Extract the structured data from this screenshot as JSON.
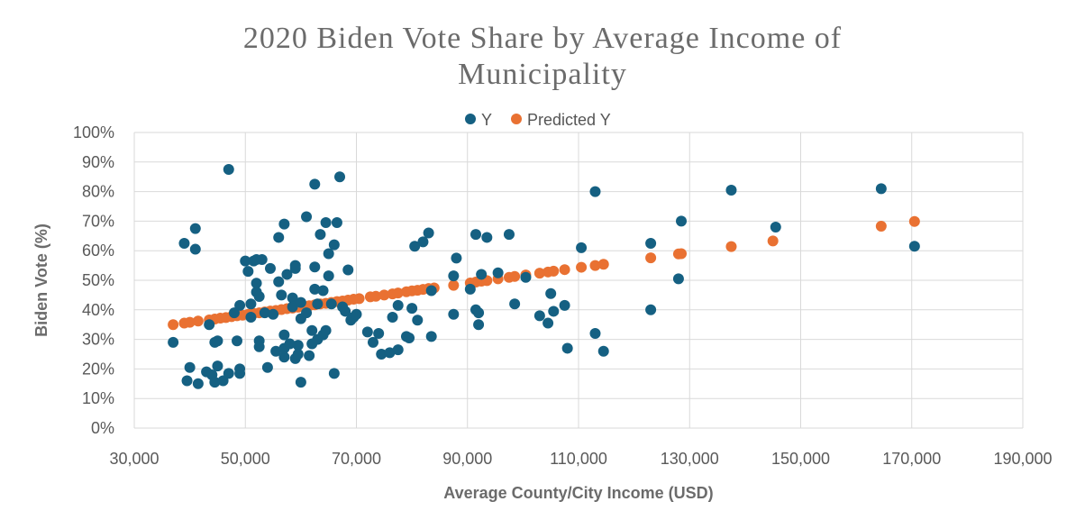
{
  "chart_data": {
    "type": "scatter",
    "title_line1": "2020 Biden Vote Share by Average Income of",
    "title_line2": "Municipality",
    "xlabel": "Average County/City Income (USD)",
    "ylabel": "Biden Vote (%)",
    "xlim": [
      30000,
      190000
    ],
    "ylim": [
      0,
      100
    ],
    "x_ticks": [
      30000,
      50000,
      70000,
      90000,
      110000,
      130000,
      150000,
      170000,
      190000
    ],
    "x_tick_labels": [
      "30,000",
      "50,000",
      "70,000",
      "90,000",
      "110,000",
      "130,000",
      "150,000",
      "170,000",
      "190,000"
    ],
    "y_ticks": [
      0,
      10,
      20,
      30,
      40,
      50,
      60,
      70,
      80,
      90,
      100
    ],
    "y_tick_labels": [
      "0%",
      "10%",
      "20%",
      "30%",
      "40%",
      "50%",
      "60%",
      "70%",
      "80%",
      "90%",
      "100%"
    ],
    "grid": true,
    "legend_position": "top",
    "series": [
      {
        "name": "Y",
        "color": "#156082",
        "points": [
          [
            37000,
            29
          ],
          [
            39000,
            62.5
          ],
          [
            39500,
            16
          ],
          [
            40000,
            20.5
          ],
          [
            41000,
            60.5
          ],
          [
            41000,
            67.5
          ],
          [
            41500,
            15
          ],
          [
            43000,
            19
          ],
          [
            43500,
            35
          ],
          [
            44000,
            18
          ],
          [
            44500,
            15.5
          ],
          [
            44500,
            29
          ],
          [
            45000,
            21
          ],
          [
            45000,
            29.5
          ],
          [
            46000,
            16
          ],
          [
            47000,
            87.5
          ],
          [
            47000,
            18.5
          ],
          [
            48000,
            39
          ],
          [
            48500,
            29.5
          ],
          [
            49000,
            18.5
          ],
          [
            49000,
            20
          ],
          [
            49000,
            41.5
          ],
          [
            50000,
            56.5
          ],
          [
            50500,
            53
          ],
          [
            51000,
            37.5
          ],
          [
            51000,
            42
          ],
          [
            51500,
            56.5
          ],
          [
            52000,
            57
          ],
          [
            52000,
            49
          ],
          [
            52000,
            46
          ],
          [
            52500,
            44.5
          ],
          [
            52500,
            29.5
          ],
          [
            52500,
            27.5
          ],
          [
            53000,
            57
          ],
          [
            53500,
            39
          ],
          [
            54000,
            20.5
          ],
          [
            54500,
            54
          ],
          [
            55000,
            38.5
          ],
          [
            55500,
            26
          ],
          [
            56000,
            64.5
          ],
          [
            56000,
            49.5
          ],
          [
            56500,
            45
          ],
          [
            57000,
            69
          ],
          [
            57000,
            24
          ],
          [
            57000,
            31.5
          ],
          [
            57000,
            27
          ],
          [
            57500,
            52
          ],
          [
            58000,
            28.5
          ],
          [
            58500,
            44
          ],
          [
            58500,
            41
          ],
          [
            59000,
            55
          ],
          [
            59000,
            54
          ],
          [
            59000,
            23.5
          ],
          [
            59500,
            25
          ],
          [
            59500,
            28
          ],
          [
            60000,
            37
          ],
          [
            60000,
            42.5
          ],
          [
            60000,
            15.5
          ],
          [
            61000,
            71.5
          ],
          [
            61000,
            39
          ],
          [
            61500,
            24.5
          ],
          [
            62000,
            33
          ],
          [
            62000,
            28.5
          ],
          [
            62500,
            82.5
          ],
          [
            62500,
            54.5
          ],
          [
            62500,
            47
          ],
          [
            63000,
            30
          ],
          [
            63000,
            42
          ],
          [
            63500,
            65.5
          ],
          [
            64000,
            46.5
          ],
          [
            64000,
            31.5
          ],
          [
            64500,
            69.5
          ],
          [
            64500,
            33
          ],
          [
            65000,
            51.5
          ],
          [
            65000,
            59
          ],
          [
            65500,
            42
          ],
          [
            66000,
            62
          ],
          [
            66000,
            18.5
          ],
          [
            66500,
            69.5
          ],
          [
            67000,
            85
          ],
          [
            67500,
            41
          ],
          [
            68000,
            39.5
          ],
          [
            68500,
            53.5
          ],
          [
            69000,
            36.5
          ],
          [
            69500,
            37.5
          ],
          [
            70000,
            38.5
          ],
          [
            72000,
            32.5
          ],
          [
            73000,
            29
          ],
          [
            74000,
            32
          ],
          [
            74500,
            25
          ],
          [
            76000,
            25.5
          ],
          [
            76500,
            37.5
          ],
          [
            77500,
            41.5
          ],
          [
            77500,
            26.5
          ],
          [
            79000,
            31
          ],
          [
            79500,
            30.5
          ],
          [
            80000,
            40.5
          ],
          [
            80500,
            61.5
          ],
          [
            81000,
            36.5
          ],
          [
            82000,
            63
          ],
          [
            83000,
            66
          ],
          [
            83500,
            31
          ],
          [
            83500,
            46.5
          ],
          [
            87500,
            38.5
          ],
          [
            87500,
            51.5
          ],
          [
            88000,
            57.5
          ],
          [
            90500,
            47
          ],
          [
            91500,
            40
          ],
          [
            91500,
            65.5
          ],
          [
            92000,
            39
          ],
          [
            92000,
            35
          ],
          [
            92500,
            52
          ],
          [
            93500,
            64.5
          ],
          [
            95500,
            52.5
          ],
          [
            97500,
            65.5
          ],
          [
            98500,
            42
          ],
          [
            100500,
            51
          ],
          [
            103000,
            38
          ],
          [
            104500,
            35.5
          ],
          [
            105000,
            45.5
          ],
          [
            105500,
            39.5
          ],
          [
            107500,
            41.5
          ],
          [
            108000,
            27
          ],
          [
            110500,
            61
          ],
          [
            113000,
            80
          ],
          [
            113000,
            32
          ],
          [
            114500,
            26
          ],
          [
            123000,
            62.5
          ],
          [
            123000,
            40
          ],
          [
            128000,
            50.5
          ],
          [
            128500,
            70
          ],
          [
            137500,
            80.5
          ],
          [
            145500,
            68
          ],
          [
            164500,
            81
          ],
          [
            170500,
            61.5
          ]
        ]
      },
      {
        "name": "Predicted Y",
        "color": "#E97132",
        "points": [
          [
            37000,
            35
          ],
          [
            39000,
            35.5
          ],
          [
            40000,
            35.8
          ],
          [
            41500,
            36.2
          ],
          [
            43500,
            36.6
          ],
          [
            44500,
            36.9
          ],
          [
            45500,
            37.2
          ],
          [
            46500,
            37.4
          ],
          [
            47500,
            37.7
          ],
          [
            48500,
            38
          ],
          [
            49500,
            38.2
          ],
          [
            50500,
            38.5
          ],
          [
            51500,
            38.8
          ],
          [
            52500,
            39
          ],
          [
            53500,
            39.3
          ],
          [
            54500,
            39.6
          ],
          [
            55500,
            39.8
          ],
          [
            56500,
            40.1
          ],
          [
            57500,
            40.4
          ],
          [
            58500,
            40.6
          ],
          [
            59500,
            40.9
          ],
          [
            60500,
            41.2
          ],
          [
            61500,
            41.4
          ],
          [
            62500,
            41.7
          ],
          [
            63500,
            42
          ],
          [
            64500,
            42.2
          ],
          [
            65500,
            42.5
          ],
          [
            66500,
            42.8
          ],
          [
            67500,
            43
          ],
          [
            68500,
            43.3
          ],
          [
            69500,
            43.6
          ],
          [
            70500,
            43.8
          ],
          [
            72500,
            44.4
          ],
          [
            73500,
            44.6
          ],
          [
            75000,
            45
          ],
          [
            76500,
            45.4
          ],
          [
            77500,
            45.7
          ],
          [
            79000,
            46.1
          ],
          [
            80000,
            46.4
          ],
          [
            81000,
            46.6
          ],
          [
            82000,
            46.9
          ],
          [
            83000,
            47.2
          ],
          [
            84000,
            47.4
          ],
          [
            87500,
            48.3
          ],
          [
            90500,
            49.1
          ],
          [
            91500,
            49.4
          ],
          [
            92500,
            49.7
          ],
          [
            93500,
            49.9
          ],
          [
            95500,
            50.5
          ],
          [
            97500,
            51
          ],
          [
            98500,
            51.3
          ],
          [
            100500,
            51.8
          ],
          [
            103000,
            52.4
          ],
          [
            104500,
            52.8
          ],
          [
            105500,
            53.1
          ],
          [
            107500,
            53.6
          ],
          [
            110500,
            54.4
          ],
          [
            113000,
            55
          ],
          [
            114500,
            55.4
          ],
          [
            123000,
            57.6
          ],
          [
            128000,
            58.9
          ],
          [
            128500,
            59
          ],
          [
            137500,
            61.4
          ],
          [
            145000,
            63.3
          ],
          [
            164500,
            68.3
          ],
          [
            170500,
            69.9
          ]
        ]
      }
    ]
  }
}
